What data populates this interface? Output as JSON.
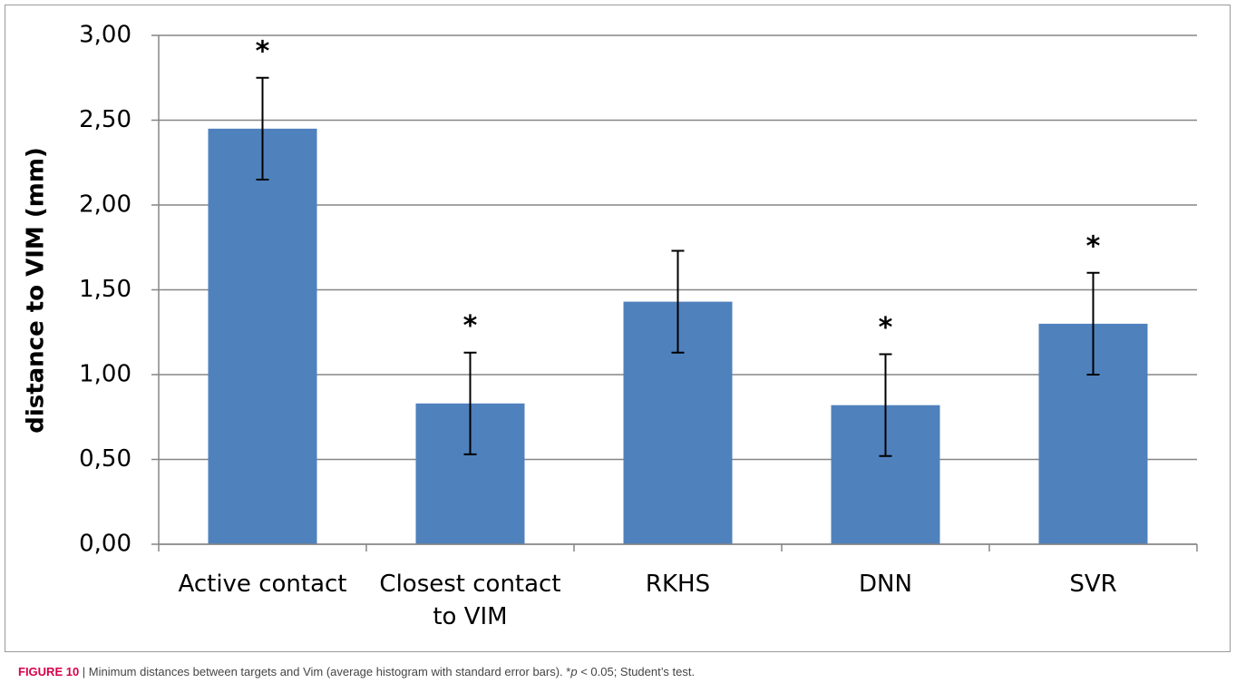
{
  "chart_data": {
    "type": "bar",
    "y_label": "distance to VIM (mm)",
    "categories": [
      "Active contact",
      "Closest contact to VIM",
      "RKHS",
      "DNN",
      "SVR"
    ],
    "values": [
      2.45,
      0.83,
      1.43,
      0.82,
      1.3
    ],
    "errors": [
      0.3,
      0.3,
      0.3,
      0.3,
      0.3
    ],
    "annotations": [
      "*",
      "*",
      null,
      "*",
      "*"
    ],
    "color": "#4f81bd",
    "ylim": [
      0,
      3
    ],
    "yticks": [
      {
        "value": 0,
        "label": "0,00"
      },
      {
        "value": 0.5,
        "label": "0,50"
      },
      {
        "value": 1,
        "label": "1,00"
      },
      {
        "value": 1.5,
        "label": "1,50"
      },
      {
        "value": 2,
        "label": "2,00"
      },
      {
        "value": 2.5,
        "label": "2,50"
      },
      {
        "value": 3,
        "label": "3,00"
      }
    ],
    "grid": true,
    "caption": [
      "FIGURE 10",
      " | Minimum distances between targets and Vim (average histogram with standard error bars). *",
      "p",
      " < 0.05; Student’s test."
    ]
  }
}
